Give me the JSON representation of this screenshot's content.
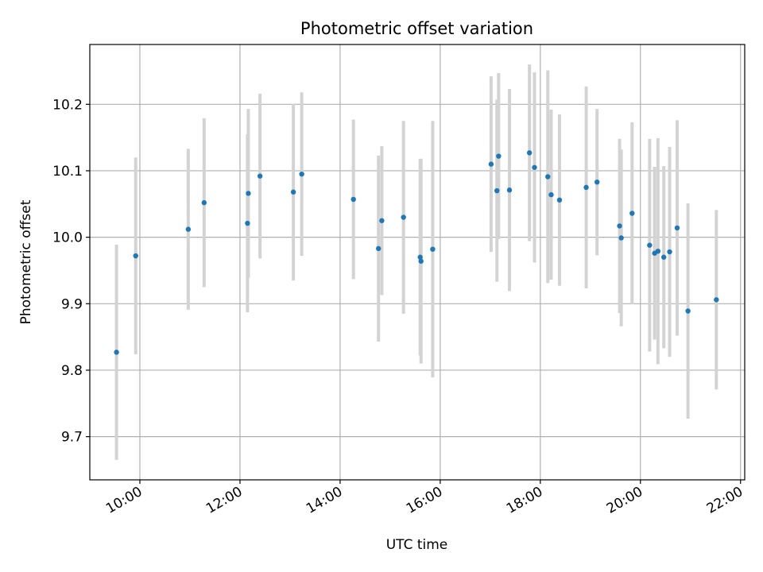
{
  "chart_data": {
    "type": "scatter",
    "title": "Photometric offset variation",
    "xlabel": "UTC time",
    "ylabel": "Photometric offset",
    "x_unit": "hours (UTC)",
    "xlim": [
      "09:00",
      "22:05"
    ],
    "ylim": [
      9.635,
      10.29
    ],
    "x_ticks": [
      {
        "value": "10:00",
        "label": "10:00"
      },
      {
        "value": "12:00",
        "label": "12:00"
      },
      {
        "value": "14:00",
        "label": "14:00"
      },
      {
        "value": "16:00",
        "label": "16:00"
      },
      {
        "value": "18:00",
        "label": "18:00"
      },
      {
        "value": "20:00",
        "label": "20:00"
      },
      {
        "value": "22:00",
        "label": "22:00"
      }
    ],
    "y_ticks": [
      {
        "value": 9.7,
        "label": "9.7"
      },
      {
        "value": 9.8,
        "label": "9.8"
      },
      {
        "value": 9.9,
        "label": "9.9"
      },
      {
        "value": 10.0,
        "label": "10.0"
      },
      {
        "value": 10.1,
        "label": "10.1"
      },
      {
        "value": 10.2,
        "label": "10.2"
      }
    ],
    "grid": true,
    "legend": "none",
    "colors": {
      "marker": "#1f77b4",
      "errorbar": "#d3d3d3",
      "grid": "#b0b0b0"
    },
    "points": [
      {
        "x": "09:32",
        "y": 9.827,
        "err": 0.162
      },
      {
        "x": "09:55",
        "y": 9.972,
        "err": 0.148
      },
      {
        "x": "10:58",
        "y": 10.012,
        "err": 0.121
      },
      {
        "x": "11:17",
        "y": 10.052,
        "err": 0.127
      },
      {
        "x": "12:09",
        "y": 10.021,
        "err": 0.134
      },
      {
        "x": "12:10",
        "y": 10.066,
        "err": 0.127
      },
      {
        "x": "12:24",
        "y": 10.092,
        "err": 0.124
      },
      {
        "x": "13:04",
        "y": 10.068,
        "err": 0.133
      },
      {
        "x": "13:14",
        "y": 10.095,
        "err": 0.123
      },
      {
        "x": "14:16",
        "y": 10.057,
        "err": 0.12
      },
      {
        "x": "14:46",
        "y": 9.983,
        "err": 0.14
      },
      {
        "x": "14:50",
        "y": 10.025,
        "err": 0.112
      },
      {
        "x": "15:16",
        "y": 10.03,
        "err": 0.145
      },
      {
        "x": "15:36",
        "y": 9.97,
        "err": 0.148
      },
      {
        "x": "15:37",
        "y": 9.964,
        "err": 0.154
      },
      {
        "x": "15:51",
        "y": 9.982,
        "err": 0.193
      },
      {
        "x": "17:01",
        "y": 10.11,
        "err": 0.132
      },
      {
        "x": "17:08",
        "y": 10.07,
        "err": 0.137
      },
      {
        "x": "17:10",
        "y": 10.122,
        "err": 0.125
      },
      {
        "x": "17:23",
        "y": 10.071,
        "err": 0.152
      },
      {
        "x": "17:47",
        "y": 10.127,
        "err": 0.133
      },
      {
        "x": "17:53",
        "y": 10.105,
        "err": 0.143
      },
      {
        "x": "18:09",
        "y": 10.091,
        "err": 0.16
      },
      {
        "x": "18:13",
        "y": 10.064,
        "err": 0.128
      },
      {
        "x": "18:23",
        "y": 10.056,
        "err": 0.129
      },
      {
        "x": "18:55",
        "y": 10.075,
        "err": 0.152
      },
      {
        "x": "19:08",
        "y": 10.083,
        "err": 0.11
      },
      {
        "x": "19:35",
        "y": 10.017,
        "err": 0.131
      },
      {
        "x": "19:37",
        "y": 9.999,
        "err": 0.133
      },
      {
        "x": "19:50",
        "y": 10.036,
        "err": 0.137
      },
      {
        "x": "20:11",
        "y": 9.988,
        "err": 0.16
      },
      {
        "x": "20:17",
        "y": 9.976,
        "err": 0.13
      },
      {
        "x": "20:21",
        "y": 9.979,
        "err": 0.17
      },
      {
        "x": "20:28",
        "y": 9.97,
        "err": 0.137
      },
      {
        "x": "20:35",
        "y": 9.978,
        "err": 0.158
      },
      {
        "x": "20:44",
        "y": 10.014,
        "err": 0.162
      },
      {
        "x": "20:57",
        "y": 9.889,
        "err": 0.162
      },
      {
        "x": "21:31",
        "y": 9.906,
        "err": 0.135
      }
    ]
  }
}
